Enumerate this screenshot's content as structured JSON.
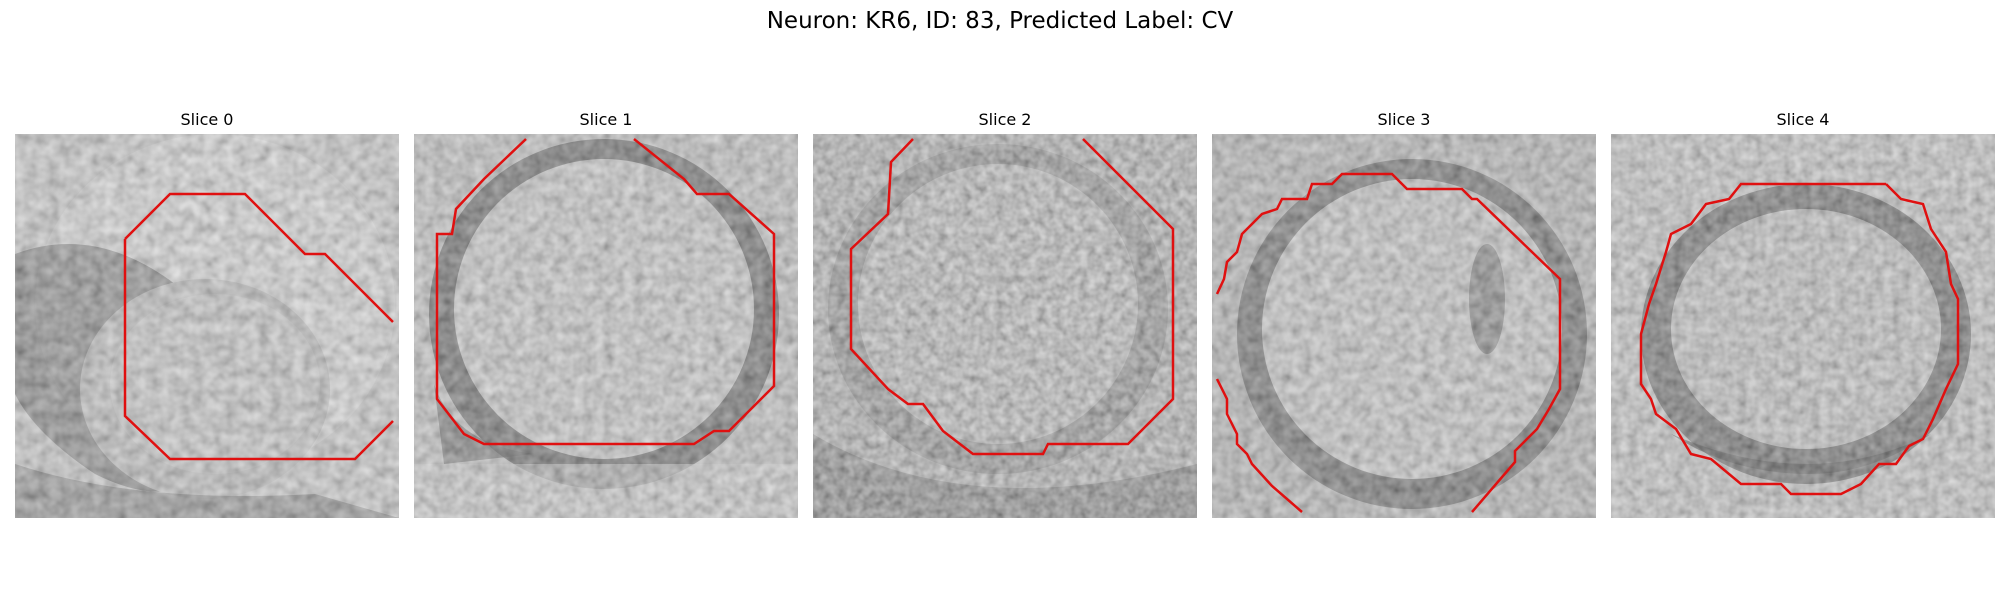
{
  "figure": {
    "title": "Neuron: KR6, ID: 83, Predicted Label: CV",
    "outline_color": "#e01010",
    "slices": [
      {
        "label": "Slice 0"
      },
      {
        "label": "Slice 1"
      },
      {
        "label": "Slice 2"
      },
      {
        "label": "Slice 3"
      },
      {
        "label": "Slice 4"
      }
    ]
  }
}
